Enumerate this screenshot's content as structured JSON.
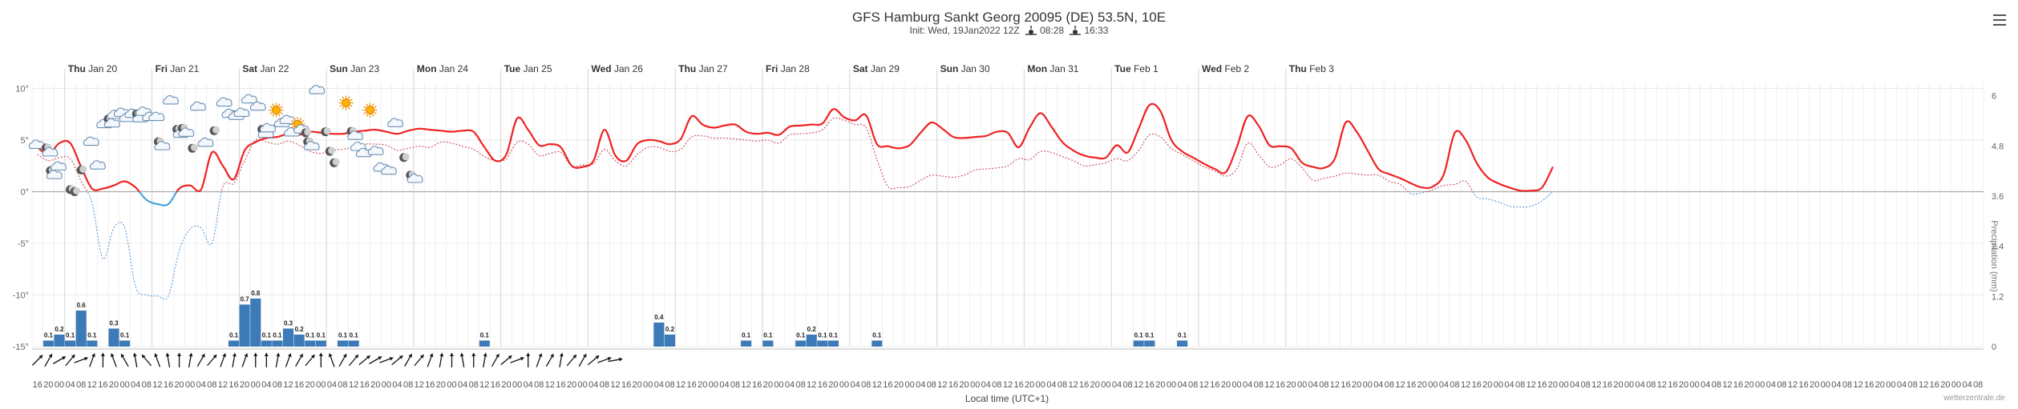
{
  "header": {
    "title": "GFS Hamburg Sankt Georg 20095 (DE) 53.5N, 10E",
    "init_label": "Init: Wed, 19Jan2022 12Z",
    "sunrise": "08:28",
    "sunset": "16:33"
  },
  "credit": "wetterzentrale.de",
  "colors": {
    "temp": "#ee2222",
    "temp_below_zero": "#4aa3df",
    "dewpoint": "#c85060",
    "dewpoint_below_zero": "#5a9bd5",
    "precip": "#3d7ab8",
    "grid": "#e6e6e6",
    "zero_line": "#aaaaaa"
  },
  "chart_data": {
    "type": "line",
    "xlabel": "Local time (UTC+1)",
    "ylabel_right": "Precipitation (mm)",
    "start": "Wed Jan 19 16:00",
    "step_hours": 3,
    "ylim": [
      -15,
      10.5
    ],
    "yticks": [
      "10°",
      "5°",
      "0°",
      "-5°",
      "-10°",
      "-15°"
    ],
    "y2lim": [
      0,
      6.3
    ],
    "y2ticks": [
      "6",
      "4.8",
      "3.6",
      "2.4",
      "1.2",
      "0"
    ],
    "grid": true,
    "legend": "none",
    "day_labels": [
      {
        "day": "Thu",
        "date": "Jan 20"
      },
      {
        "day": "Fri",
        "date": "Jan 21"
      },
      {
        "day": "Sat",
        "date": "Jan 22"
      },
      {
        "day": "Sun",
        "date": "Jan 23"
      },
      {
        "day": "Mon",
        "date": "Jan 24"
      },
      {
        "day": "Tue",
        "date": "Jan 25"
      },
      {
        "day": "Wed",
        "date": "Jan 26"
      },
      {
        "day": "Thu",
        "date": "Jan 27"
      },
      {
        "day": "Fri",
        "date": "Jan 28"
      },
      {
        "day": "Sat",
        "date": "Jan 29"
      },
      {
        "day": "Sun",
        "date": "Jan 30"
      },
      {
        "day": "Mon",
        "date": "Jan 31"
      },
      {
        "day": "Tue",
        "date": "Feb 1"
      },
      {
        "day": "Wed",
        "date": "Feb 2"
      },
      {
        "day": "Thu",
        "date": "Feb 3"
      }
    ],
    "hour_labels": [
      "16",
      "20",
      "00",
      "04",
      "08",
      "12",
      "16",
      "20",
      "00",
      "04",
      "08",
      "12",
      "16",
      "20",
      "00",
      "04",
      "08",
      "12",
      "16",
      "20",
      "00",
      "04",
      "08",
      "12",
      "16",
      "20",
      "00",
      "04",
      "08",
      "12",
      "16",
      "20",
      "00",
      "04",
      "08",
      "12",
      "16",
      "20",
      "00",
      "04",
      "08",
      "12",
      "16",
      "20",
      "00",
      "04",
      "08",
      "12",
      "16",
      "20",
      "00",
      "04",
      "08",
      "12",
      "16",
      "20",
      "00",
      "04",
      "08",
      "12",
      "16",
      "20",
      "00",
      "04",
      "08",
      "12",
      "16",
      "20",
      "00",
      "04",
      "08",
      "12",
      "16",
      "20",
      "00",
      "04",
      "08",
      "12",
      "16",
      "20",
      "00",
      "04",
      "08",
      "12",
      "16",
      "20",
      "00",
      "04",
      "08",
      "12",
      "16",
      "20",
      "00",
      "04",
      "08",
      "12",
      "16",
      "20",
      "00",
      "04",
      "08",
      "12",
      "16",
      "20",
      "00",
      "04",
      "08",
      "12",
      "16",
      "20",
      "00",
      "04",
      "08",
      "12",
      "16",
      "20",
      "00",
      "04",
      "08",
      "12",
      "16",
      "20",
      "00",
      "04",
      "08",
      "12",
      "16",
      "20",
      "00",
      "04",
      "08",
      "12",
      "16",
      "20",
      "00",
      "04",
      "08",
      "12",
      "16",
      "20",
      "00",
      "04",
      "08",
      "12",
      "16",
      "20",
      "00",
      "04",
      "08",
      "12",
      "16",
      "20",
      "00",
      "04",
      "08",
      "12",
      "16",
      "20",
      "00",
      "04",
      "08",
      "12",
      "16",
      "20",
      "00",
      "04",
      "08",
      "12",
      "16",
      "20",
      "00",
      "04",
      "08",
      "12",
      "16",
      "20",
      "00",
      "04",
      "08"
    ],
    "series": [
      {
        "values": [
          4.3,
          3.6,
          4.7,
          4.7,
          2.4,
          0.3,
          0.3,
          0.6,
          1,
          0.4,
          -0.8,
          -1.2,
          -1.2,
          0.3,
          0.6,
          0.2,
          3.8,
          2.5,
          1.2,
          4,
          4.8,
          5.2,
          5.3,
          5.6,
          5.5,
          5.8,
          5.7,
          5.6,
          5.6,
          5.8,
          5.9,
          6,
          5.8,
          5.6,
          5.9,
          6.1,
          6,
          5.9,
          5.8,
          5.9,
          5.8,
          4.3,
          3,
          3.6,
          7.1,
          6,
          4.5,
          4.6,
          4.3,
          2.5,
          2.4,
          3,
          6,
          3.5,
          3,
          4.6,
          5,
          4.9,
          4.6,
          5.1,
          7.3,
          6.5,
          6.2,
          6.4,
          6.5,
          5.8,
          5.6,
          5.7,
          5.5,
          6.3,
          6.4,
          6.5,
          6.6,
          8,
          7.2,
          6.9,
          7.4,
          4.6,
          4.4,
          4.2,
          4.5,
          5.7,
          6.7,
          6.1,
          5.3,
          5.2,
          5.3,
          5.4,
          5.8,
          5.7,
          4.3,
          6.2,
          7.6,
          6.3,
          4.8,
          4,
          3.5,
          3.3,
          3.3,
          4.5,
          3.8,
          6.1,
          8.4,
          7.8,
          5,
          3.9,
          3.3,
          2.7,
          2.2,
          1.9,
          4.3,
          7.3,
          6.4,
          4.5,
          4.4,
          4.2,
          2.8,
          2.4,
          2.3,
          3.2,
          6.7,
          5.8,
          4,
          2.2,
          1.7,
          1.3,
          0.8,
          0.4,
          0.5,
          1.7,
          5.7,
          5,
          2.8,
          1.4,
          0.8,
          0.4,
          0.1,
          0.1,
          0.4,
          2.4
        ]
      },
      {
        "values": [
          3.6,
          3,
          3.3,
          3.2,
          1,
          -1.1,
          -6.5,
          -3.5,
          -3.5,
          -9.2,
          -10,
          -10.1,
          -10.1,
          -5.7,
          -3.6,
          -3.5,
          -5,
          0.5,
          0.8,
          3,
          5,
          4.8,
          4.6,
          4.9,
          4.5,
          3.9,
          3.7,
          4,
          4.1,
          4.3,
          4.6,
          4.6,
          4.5,
          4,
          4.2,
          4.4,
          4.3,
          4.8,
          4.7,
          4.4,
          4.1,
          3.4,
          3,
          3.2,
          4.8,
          4.6,
          3.5,
          3.7,
          3.8,
          2.5,
          2.6,
          2.7,
          4.1,
          3,
          2.5,
          3.6,
          4.3,
          4.3,
          3.9,
          4.1,
          5.3,
          5.4,
          5.2,
          5.2,
          5.1,
          5,
          4.9,
          5,
          4.7,
          5.5,
          5.6,
          5.7,
          6,
          7.1,
          6.9,
          6.5,
          6.2,
          3.1,
          0.5,
          0.4,
          0.5,
          1.1,
          1.6,
          1.5,
          1.4,
          1.6,
          2.1,
          2.2,
          2.3,
          2.5,
          3.2,
          3.1,
          3.9,
          3.8,
          3.4,
          3,
          2.5,
          2.6,
          2.8,
          3.2,
          3,
          4,
          5.5,
          5.3,
          4.2,
          3.6,
          3,
          2.4,
          2,
          1.5,
          2.2,
          4.7,
          3.6,
          2.4,
          2.6,
          3.2,
          2.3,
          1.1,
          1.3,
          1.5,
          1.8,
          1.7,
          1.6,
          1.6,
          1,
          0.7,
          -0.2,
          -0.1,
          0.2,
          0.6,
          0.7,
          1,
          -0.5,
          -0.7,
          -1,
          -1.4,
          -1.5,
          -1.4,
          -0.9,
          0
        ]
      }
    ],
    "precip": [
      {
        "i": 1,
        "v": 0.1,
        "label": "0.1"
      },
      {
        "i": 2,
        "v": 0.2,
        "label": "0.2"
      },
      {
        "i": 3,
        "v": 0.1,
        "label": "0.1"
      },
      {
        "i": 4,
        "v": 0.6,
        "label": "0.6"
      },
      {
        "i": 5,
        "v": 0.1,
        "label": "0.1"
      },
      {
        "i": 7,
        "v": 0.3,
        "label": "0.3"
      },
      {
        "i": 8,
        "v": 0.1,
        "label": "0.1"
      },
      {
        "i": 18,
        "v": 0.1,
        "label": "0.1"
      },
      {
        "i": 19,
        "v": 0.7,
        "label": "0.7"
      },
      {
        "i": 20,
        "v": 0.8,
        "label": "0.8"
      },
      {
        "i": 21,
        "v": 0.1,
        "label": "0.1"
      },
      {
        "i": 22,
        "v": 0.1,
        "label": "0.1"
      },
      {
        "i": 23,
        "v": 0.3,
        "label": "0.3"
      },
      {
        "i": 24,
        "v": 0.2,
        "label": "0.2"
      },
      {
        "i": 25,
        "v": 0.1,
        "label": "0.1"
      },
      {
        "i": 26,
        "v": 0.1,
        "label": "0.1"
      },
      {
        "i": 28,
        "v": 0.1,
        "label": "0.1"
      },
      {
        "i": 29,
        "v": 0.1,
        "label": "0.1"
      },
      {
        "i": 41,
        "v": 0.1,
        "label": "0.1"
      },
      {
        "i": 57,
        "v": 0.4,
        "label": "0.4"
      },
      {
        "i": 58,
        "v": 0.2,
        "label": "0.2"
      },
      {
        "i": 65,
        "v": 0.1,
        "label": "0.1"
      },
      {
        "i": 67,
        "v": 0.1,
        "label": "0.1"
      },
      {
        "i": 70,
        "v": 0.1,
        "label": "0.1"
      },
      {
        "i": 71,
        "v": 0.2,
        "label": "0.2"
      },
      {
        "i": 72,
        "v": 0.1,
        "label": "0.1"
      },
      {
        "i": 73,
        "v": 0.1,
        "label": "0.1"
      },
      {
        "i": 77,
        "v": 0.1,
        "label": "0.1"
      },
      {
        "i": 101,
        "v": 0.1,
        "label": "0.1"
      },
      {
        "i": 102,
        "v": 0.1,
        "label": "0.1"
      },
      {
        "i": 105,
        "v": 0.1,
        "label": "0.1"
      }
    ],
    "weather_icons": [
      {
        "i": 0,
        "t": 4.5,
        "kind": "cloud"
      },
      {
        "i": 1,
        "t": 4,
        "kind": "moon-cloud"
      },
      {
        "i": 1.4,
        "t": 1.8,
        "kind": "moon-cloud"
      },
      {
        "i": 2,
        "t": 2.4,
        "kind": "cloud"
      },
      {
        "i": 3,
        "t": 0.2,
        "kind": "moon"
      },
      {
        "i": 3.4,
        "t": 0,
        "kind": "moon"
      },
      {
        "i": 4,
        "t": 2.1,
        "kind": "moon"
      },
      {
        "i": 5,
        "t": 4.8,
        "kind": "cloud"
      },
      {
        "i": 5.6,
        "t": 2.5,
        "kind": "cloud"
      },
      {
        "i": 6.2,
        "t": 6.5,
        "kind": "cloud"
      },
      {
        "i": 6.7,
        "t": 6.8,
        "kind": "moon-cloud"
      },
      {
        "i": 7.2,
        "t": 7.4,
        "kind": "cloud"
      },
      {
        "i": 7.8,
        "t": 7.6,
        "kind": "cloud"
      },
      {
        "i": 8.3,
        "t": 7.1,
        "kind": "cloud"
      },
      {
        "i": 8.8,
        "t": 7.5,
        "kind": "cloud"
      },
      {
        "i": 9.3,
        "t": 7.3,
        "kind": "moon-cloud"
      },
      {
        "i": 9.8,
        "t": 7.7,
        "kind": "cloud"
      },
      {
        "i": 10.4,
        "t": 7.2,
        "kind": "cloud"
      },
      {
        "i": 11,
        "t": 7.2,
        "kind": "cloud"
      },
      {
        "i": 11.3,
        "t": 4.6,
        "kind": "moon-cloud"
      },
      {
        "i": 12.3,
        "t": 8.8,
        "kind": "cloud"
      },
      {
        "i": 13,
        "t": 5.8,
        "kind": "moon-cloud"
      },
      {
        "i": 13.5,
        "t": 5.9,
        "kind": "moon-cloud"
      },
      {
        "i": 14.2,
        "t": 4.2,
        "kind": "moon"
      },
      {
        "i": 14.8,
        "t": 8.2,
        "kind": "cloud"
      },
      {
        "i": 15.5,
        "t": 4.7,
        "kind": "cloud"
      },
      {
        "i": 16.2,
        "t": 5.9,
        "kind": "moon"
      },
      {
        "i": 17.2,
        "t": 8.6,
        "kind": "cloud"
      },
      {
        "i": 17.7,
        "t": 7.5,
        "kind": "cloud"
      },
      {
        "i": 18.3,
        "t": 7.3,
        "kind": "cloud"
      },
      {
        "i": 18.8,
        "t": 7.6,
        "kind": "cloud"
      },
      {
        "i": 19.5,
        "t": 8.9,
        "kind": "cloud"
      },
      {
        "i": 20.3,
        "t": 8.2,
        "kind": "cloud"
      },
      {
        "i": 20.8,
        "t": 5.8,
        "kind": "moon-cloud"
      },
      {
        "i": 21.2,
        "t": 6.1,
        "kind": "cloud"
      },
      {
        "i": 21.9,
        "t": 7.9,
        "kind": "sun"
      },
      {
        "i": 22.5,
        "t": 6.6,
        "kind": "cloud"
      },
      {
        "i": 23,
        "t": 6.9,
        "kind": "cloud"
      },
      {
        "i": 23.4,
        "t": 5.7,
        "kind": "cloud"
      },
      {
        "i": 24,
        "t": 6.3,
        "kind": "sun-cloud"
      },
      {
        "i": 24.6,
        "t": 5.7,
        "kind": "moon"
      },
      {
        "i": 25,
        "t": 4.6,
        "kind": "moon-cloud"
      },
      {
        "i": 25.7,
        "t": 9.8,
        "kind": "cloud"
      },
      {
        "i": 26.4,
        "t": 5.8,
        "kind": "moon"
      },
      {
        "i": 26.8,
        "t": 3.9,
        "kind": "moon"
      },
      {
        "i": 27.2,
        "t": 2.8,
        "kind": "moon"
      },
      {
        "i": 28.3,
        "t": 8.6,
        "kind": "sun"
      },
      {
        "i": 29,
        "t": 5.6,
        "kind": "moon-cloud"
      },
      {
        "i": 29.5,
        "t": 4.3,
        "kind": "cloud"
      },
      {
        "i": 30,
        "t": 3.7,
        "kind": "cloud"
      },
      {
        "i": 30.5,
        "t": 7.9,
        "kind": "sun"
      },
      {
        "i": 31.1,
        "t": 3.9,
        "kind": "cloud"
      },
      {
        "i": 31.6,
        "t": 2.3,
        "kind": "cloud"
      },
      {
        "i": 32.3,
        "t": 2,
        "kind": "cloud"
      },
      {
        "i": 32.9,
        "t": 6.6,
        "kind": "cloud"
      },
      {
        "i": 33.6,
        "t": 3.3,
        "kind": "moon"
      },
      {
        "i": 34.2,
        "t": 1.6,
        "kind": "moon"
      },
      {
        "i": 34.7,
        "t": 1.2,
        "kind": "cloud"
      }
    ],
    "wind_directions": [
      45,
      60,
      30,
      50,
      20,
      70,
      90,
      110,
      120,
      100,
      130,
      110,
      100,
      90,
      80,
      60,
      50,
      70,
      80,
      70,
      90,
      90,
      80,
      70,
      60,
      50,
      90,
      110,
      60,
      50,
      40,
      30,
      20,
      40,
      60,
      50,
      70,
      80,
      90,
      100,
      90,
      80,
      60,
      40,
      20,
      90,
      70,
      60,
      80,
      50,
      60,
      40,
      20,
      10
    ]
  }
}
